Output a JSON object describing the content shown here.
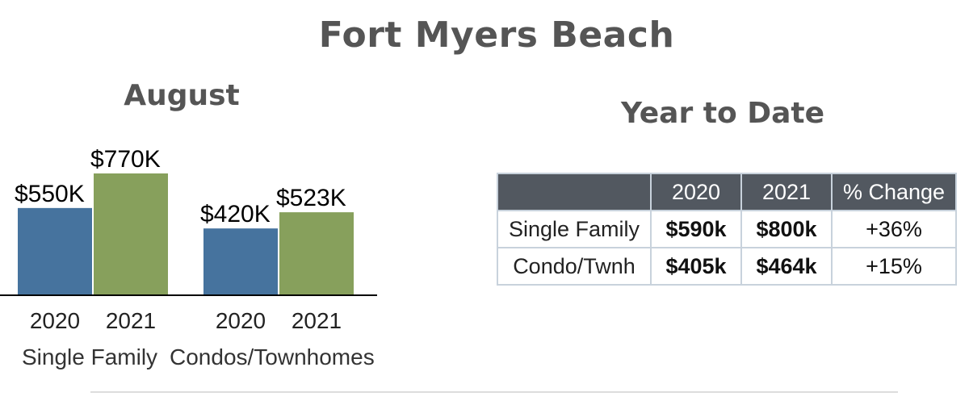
{
  "title": "Fort Myers Beach",
  "month_title": "August",
  "ytd_title": "Year to Date",
  "colors": {
    "year_2020": "#46739e",
    "year_2021": "#87a05c",
    "header_bg": "#525860"
  },
  "chart_data": {
    "type": "bar",
    "title": "August",
    "groups": [
      "Single Family",
      "Condos/Townhomes"
    ],
    "categories": [
      "2020",
      "2021"
    ],
    "series": [
      {
        "group": "Single Family",
        "values": [
          550,
          770
        ],
        "labels": [
          "$550K",
          "$770K"
        ]
      },
      {
        "group": "Condos/Townhomes",
        "values": [
          420,
          523
        ],
        "labels": [
          "$420K",
          "$523K"
        ]
      }
    ],
    "ylim": [
      0,
      770
    ],
    "grid": false,
    "legend": "none"
  },
  "ytd_table": {
    "headers": [
      "",
      "2020",
      "2021",
      "% Change"
    ],
    "rows": [
      {
        "label": "Single Family",
        "v2020": "$590k",
        "v2021": "$800k",
        "change": "+36%"
      },
      {
        "label": "Condo/Twnh",
        "v2020": "$405k",
        "v2021": "$464k",
        "change": "+15%"
      }
    ]
  }
}
